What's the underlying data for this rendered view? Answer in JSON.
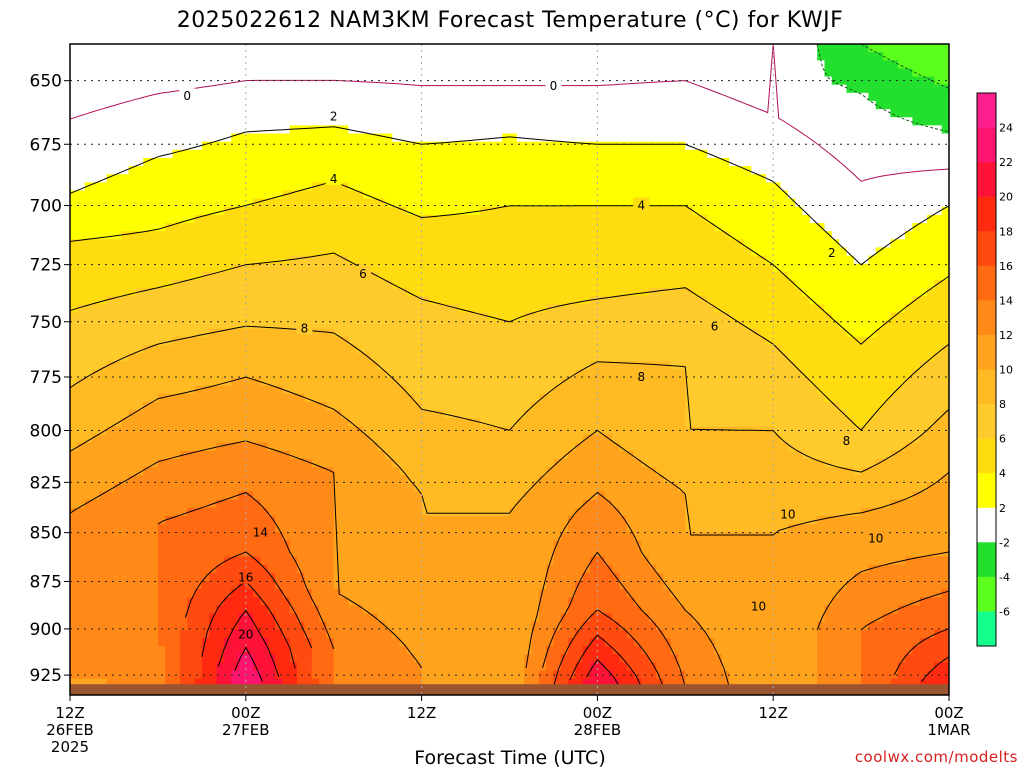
{
  "chart_data": {
    "type": "heatmap",
    "title": "2025022612 NAM3KM Forecast Temperature (°C) for KWJF",
    "xlabel": "Forecast Time (UTC)",
    "ylabel": "",
    "credit": "coolwx.com/modelts",
    "x_ticks": [
      {
        "label1": "12Z",
        "label2": "26FEB",
        "label3": "2025",
        "hour": 0
      },
      {
        "label1": "00Z",
        "label2": "27FEB",
        "label3": "",
        "hour": 12
      },
      {
        "label1": "12Z",
        "label2": "",
        "label3": "",
        "hour": 24
      },
      {
        "label1": "00Z",
        "label2": "28FEB",
        "label3": "",
        "hour": 36
      },
      {
        "label1": "12Z",
        "label2": "",
        "label3": "",
        "hour": 48
      },
      {
        "label1": "00Z",
        "label2": "1MAR",
        "label3": "",
        "hour": 60
      }
    ],
    "x_range_hours": [
      0,
      60
    ],
    "y_ticks": [
      650,
      675,
      700,
      725,
      750,
      775,
      800,
      825,
      850,
      875,
      900,
      925
    ],
    "y_range": [
      636,
      936
    ],
    "y_scale": "log-pressure (hPa, inverted)",
    "surface_pressure_hpa": 930,
    "grid": true,
    "colorbar": {
      "labels": [
        "24",
        "22",
        "20",
        "18",
        "16",
        "14",
        "12",
        "10",
        "8",
        "6",
        "4",
        "2",
        "-2",
        "-4",
        "-6"
      ],
      "bands": [
        {
          "min": 24,
          "max": 26,
          "color": "#ff1f8f"
        },
        {
          "min": 22,
          "max": 24,
          "color": "#ff1470"
        },
        {
          "min": 20,
          "max": 22,
          "color": "#ff1238"
        },
        {
          "min": 18,
          "max": 20,
          "color": "#ff2a10"
        },
        {
          "min": 16,
          "max": 18,
          "color": "#ff4a10"
        },
        {
          "min": 14,
          "max": 16,
          "color": "#ff6a12"
        },
        {
          "min": 12,
          "max": 14,
          "color": "#ff8a18"
        },
        {
          "min": 10,
          "max": 12,
          "color": "#ffa41c"
        },
        {
          "min": 8,
          "max": 10,
          "color": "#ffba24"
        },
        {
          "min": 6,
          "max": 8,
          "color": "#ffca2c"
        },
        {
          "min": 4,
          "max": 6,
          "color": "#ffdc10"
        },
        {
          "min": 2,
          "max": 4,
          "color": "#ffff00"
        },
        {
          "min": -2,
          "max": 2,
          "color": "#ffffff"
        },
        {
          "min": -4,
          "max": -2,
          "color": "#24e02e"
        },
        {
          "min": -6,
          "max": -4,
          "color": "#5cff1c"
        },
        {
          "min": -8,
          "max": -6,
          "color": "#14ff8c"
        }
      ]
    },
    "contour_labels": [
      {
        "text": "0",
        "hour": 8.0,
        "p": 656
      },
      {
        "text": "0",
        "hour": 33.0,
        "p": 652
      },
      {
        "text": "2",
        "hour": 18.0,
        "p": 664
      },
      {
        "text": "2",
        "hour": 52.0,
        "p": 720
      },
      {
        "text": "4",
        "hour": 18.0,
        "p": 689
      },
      {
        "text": "4",
        "hour": 39.0,
        "p": 700
      },
      {
        "text": "6",
        "hour": 20.0,
        "p": 729
      },
      {
        "text": "6",
        "hour": 44.0,
        "p": 752
      },
      {
        "text": "8",
        "hour": 16.0,
        "p": 753
      },
      {
        "text": "8",
        "hour": 39.0,
        "p": 775
      },
      {
        "text": "8",
        "hour": 53.0,
        "p": 805
      },
      {
        "text": "10",
        "hour": 49.0,
        "p": 841
      },
      {
        "text": "10",
        "hour": 55.0,
        "p": 853
      },
      {
        "text": "10",
        "hour": 47.0,
        "p": 888
      },
      {
        "text": "14",
        "hour": 13.0,
        "p": 850
      },
      {
        "text": "16",
        "hour": 12.0,
        "p": 873
      },
      {
        "text": "20",
        "hour": 12.0,
        "p": 903
      }
    ],
    "temperature_profiles": [
      {
        "hour": 0,
        "p": [
          636,
          665,
          695,
          715,
          745,
          780,
          810,
          840,
          870,
          900,
          925,
          930
        ],
        "t": [
          -2,
          0,
          2,
          4,
          6,
          8,
          10,
          12,
          12,
          12,
          12,
          11
        ]
      },
      {
        "hour": 6,
        "p": [
          636,
          655,
          680,
          710,
          735,
          760,
          785,
          815,
          845,
          870,
          900,
          930
        ],
        "t": [
          -2,
          0,
          2,
          4,
          6,
          8,
          10,
          12,
          14,
          14,
          14,
          13
        ]
      },
      {
        "hour": 12,
        "p": [
          636,
          650,
          670,
          700,
          725,
          752,
          775,
          805,
          830,
          860,
          890,
          930
        ],
        "t": [
          -1,
          0,
          2,
          4,
          6,
          8,
          10,
          12,
          14,
          16,
          20,
          24
        ]
      },
      {
        "hour": 18,
        "p": [
          636,
          650,
          668,
          690,
          720,
          755,
          790,
          820,
          850,
          880,
          910,
          930
        ],
        "t": [
          -1,
          0,
          2,
          4,
          6,
          8,
          10,
          12,
          12,
          12,
          14,
          14
        ]
      },
      {
        "hour": 24,
        "p": [
          636,
          652,
          675,
          705,
          740,
          790,
          830,
          870,
          920,
          930
        ],
        "t": [
          -1,
          0,
          2,
          4,
          6,
          8,
          10,
          10,
          12,
          12
        ]
      },
      {
        "hour": 30,
        "p": [
          636,
          652,
          672,
          700,
          750,
          800,
          840,
          880,
          925,
          930
        ],
        "t": [
          -1,
          0,
          2,
          4,
          6,
          8,
          10,
          10,
          10,
          10
        ]
      },
      {
        "hour": 36,
        "p": [
          636,
          652,
          675,
          700,
          740,
          768,
          800,
          830,
          860,
          890,
          930
        ],
        "t": [
          -1,
          0,
          2,
          4,
          6,
          8,
          10,
          12,
          14,
          16,
          22
        ]
      },
      {
        "hour": 42,
        "p": [
          636,
          650,
          675,
          700,
          735,
          770,
          800,
          830,
          860,
          890,
          930
        ],
        "t": [
          -1,
          0,
          2,
          4,
          6,
          8,
          8,
          10,
          10,
          12,
          14
        ]
      },
      {
        "hour": 48,
        "p": [
          636,
          650,
          690,
          725,
          760,
          800,
          850,
          900,
          930
        ],
        "t": [
          0,
          -1,
          2,
          4,
          6,
          8,
          10,
          10,
          10
        ]
      },
      {
        "hour": 54,
        "p": [
          636,
          655,
          690,
          725,
          760,
          800,
          840,
          870,
          900,
          930
        ],
        "t": [
          -4,
          -2,
          0,
          2,
          4,
          6,
          10,
          12,
          14,
          14
        ]
      },
      {
        "hour": 60,
        "p": [
          636,
          670,
          700,
          730,
          760,
          790,
          820,
          860,
          900,
          930
        ],
        "t": [
          -6,
          -2,
          2,
          4,
          6,
          8,
          10,
          12,
          16,
          20
        ]
      }
    ]
  }
}
